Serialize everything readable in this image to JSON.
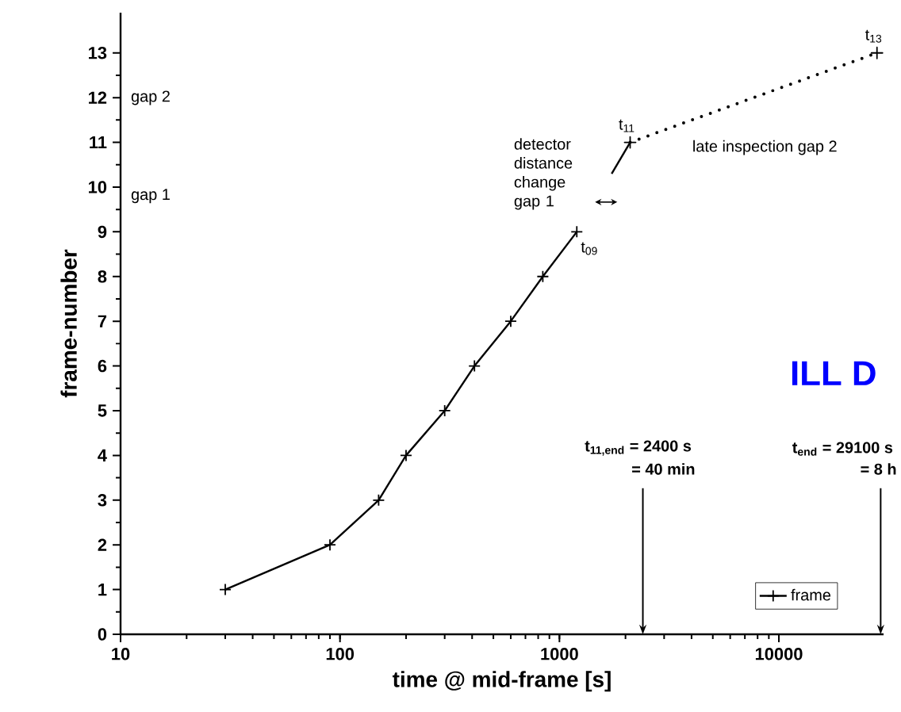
{
  "chart_data": {
    "type": "line",
    "xlabel": "time @ mid-frame [s]",
    "ylabel": "frame-number",
    "log": "x",
    "xlim": [
      10,
      30000
    ],
    "xticks": [
      10,
      100,
      1000,
      10000
    ],
    "ylim": [
      0,
      13.9
    ],
    "yticks": [
      0,
      1,
      2,
      3,
      4,
      5,
      6,
      7,
      8,
      9,
      10,
      11,
      12,
      13
    ],
    "grid": false,
    "legend": "bottom right",
    "series": [
      {
        "name": "frame",
        "color": "#000000",
        "marker": "cross",
        "line_style": "solid",
        "x": [
          30,
          90,
          150,
          200,
          300,
          410,
          600,
          840,
          1200
        ],
        "values": [
          1,
          2,
          3,
          4,
          5,
          6,
          7,
          8,
          9
        ]
      },
      {
        "color": "#000000",
        "marker": "cross",
        "line_style": "dotted",
        "x": [
          2100,
          28000
        ],
        "values": [
          11,
          13
        ]
      },
      {
        "color": "#000000",
        "marker": "none",
        "line_style": "solid",
        "x": [
          1730,
          2100
        ],
        "values": [
          10.3,
          11
        ]
      }
    ],
    "annotations": [
      "gap 2",
      "gap 1",
      "detector distance change gap 1",
      "late inspection gap 2",
      {
        "text": "t$_{09}$",
        "x": 1200,
        "y": 9
      },
      {
        "text": "t$_{11}$",
        "x": 2100,
        "y": 11
      },
      {
        "text": "t$_{13}$",
        "x": 28000,
        "y": 13
      },
      "= 40 min",
      "= 8 h",
      "ILL D"
    ],
    "ref_lines": [
      {
        "axis": "x",
        "value": 2400,
        "label": "t$_{11,end}$ = 2400 s"
      },
      {
        "axis": "x",
        "value": 29100,
        "label": "t$_{end}$ = 29100 s"
      }
    ]
  }
}
